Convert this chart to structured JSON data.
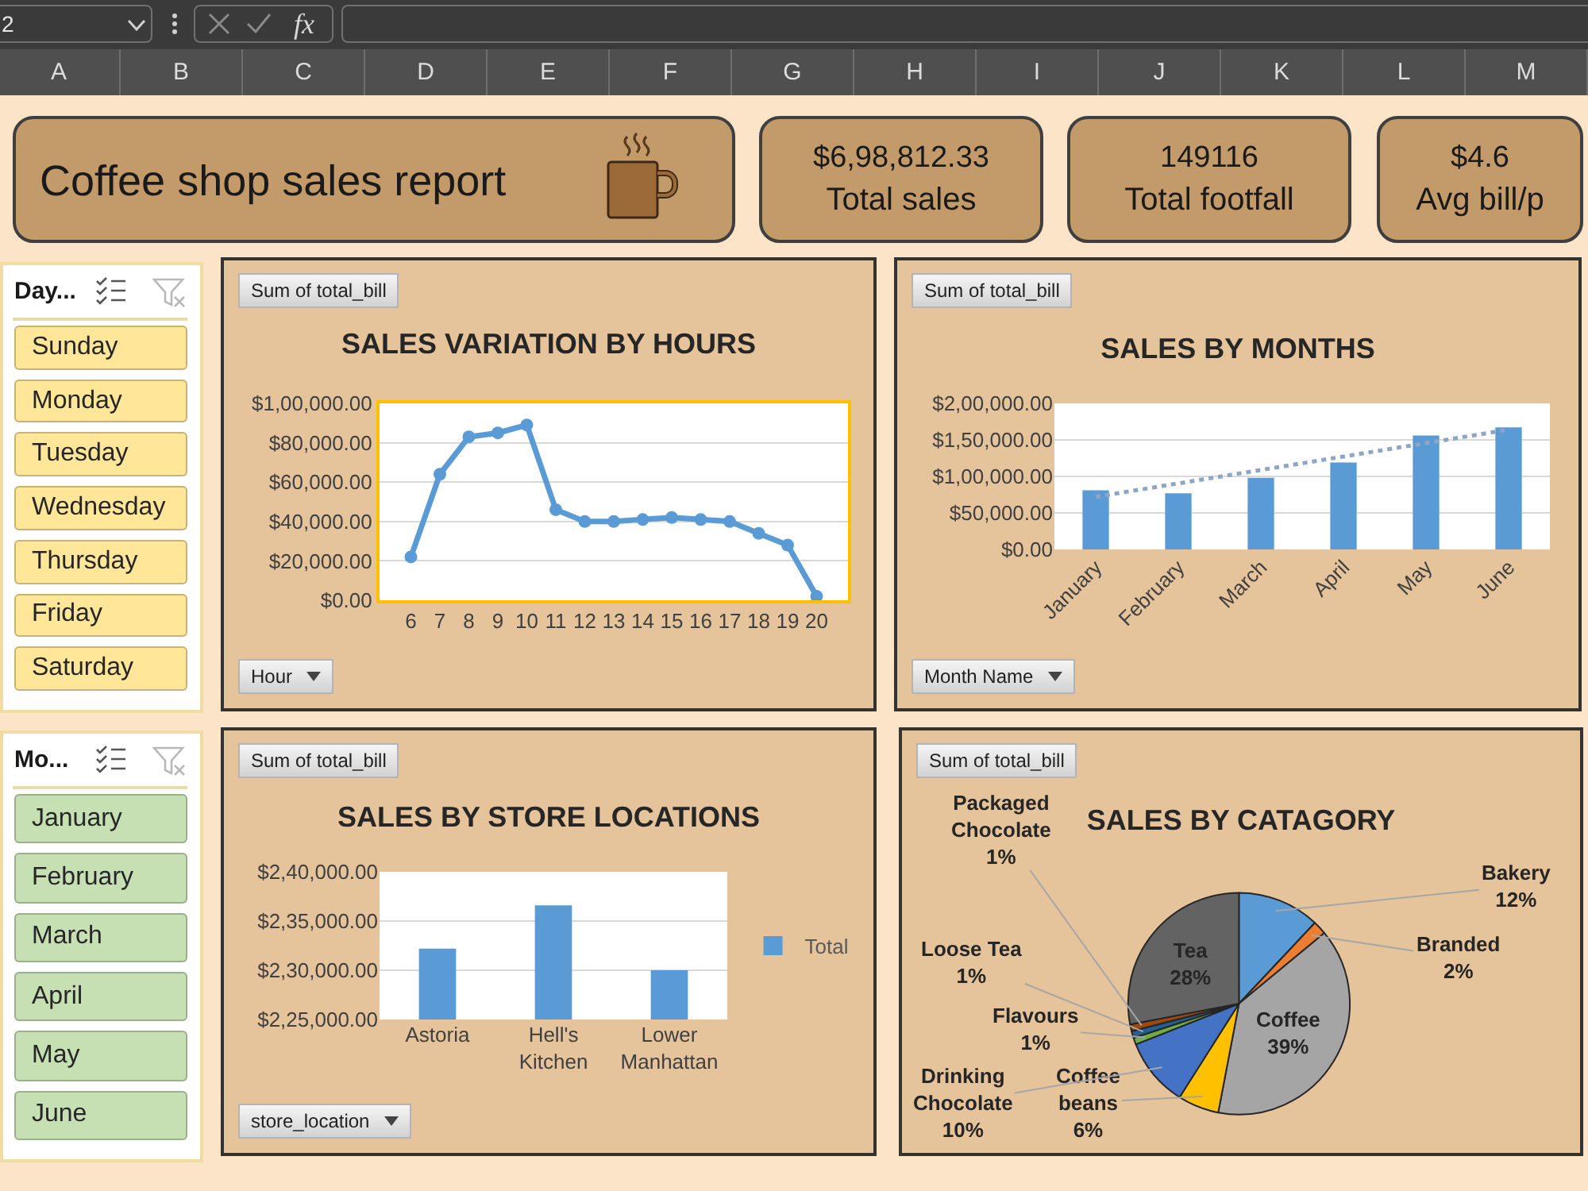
{
  "chart_data": [
    {
      "type": "other",
      "annotations": [
        "2",
        "fx",
        "A",
        "B",
        "C",
        "D",
        "E",
        "F",
        "G",
        "H",
        "I",
        "J",
        "K",
        "L",
        "M"
      ]
    },
    {
      "type": "other",
      "title": "Coffee shop sales report"
    },
    {
      "type": "other",
      "title": "Total sales",
      "annotations": [
        "$6,98,812.33"
      ]
    },
    {
      "type": "other",
      "title": "Total footfall",
      "annotations": [
        "149116"
      ]
    },
    {
      "type": "other",
      "title": "Avg bill/p",
      "annotations": [
        "$4.6"
      ]
    },
    {
      "type": "other",
      "title": "Day...",
      "categories": [
        "Sunday",
        "Monday",
        "Tuesday",
        "Wednesday",
        "Thursday",
        "Friday",
        "Saturday"
      ],
      "color": "#ffe699"
    },
    {
      "type": "line",
      "title": "SALES VARIATION BY HOURS",
      "categories": [
        "6",
        "7",
        "8",
        "9",
        "10",
        "11",
        "12",
        "13",
        "14",
        "15",
        "16",
        "17",
        "18",
        "19",
        "20"
      ],
      "values": [
        22000,
        64000,
        83000,
        85000,
        89000,
        46000,
        40000,
        40000,
        41000,
        42000,
        41000,
        40000,
        34000,
        28000,
        2000
      ],
      "color": "#5b9bd5",
      "marker": "circle",
      "ylim": [
        0,
        100000
      ],
      "yticks": [
        {
          "value": 0,
          "label": "$0.00"
        },
        {
          "value": 20000,
          "label": "$20,000.00"
        },
        {
          "value": 40000,
          "label": "$40,000.00"
        },
        {
          "value": 60000,
          "label": "$60,000.00"
        },
        {
          "value": 80000,
          "label": "$80,000.00"
        },
        {
          "value": 100000,
          "label": "$1,00,000.00"
        }
      ],
      "grid": "y",
      "annotations": [
        "Sum of total_bill",
        "Hour"
      ]
    },
    {
      "type": "bar",
      "title": "SALES BY MONTHS",
      "categories": [
        "January",
        "February",
        "March",
        "April",
        "May",
        "June"
      ],
      "series": [
        {
          "color": "#5b9bd5",
          "values": [
            81000,
            77000,
            98000,
            119000,
            156000,
            167000
          ]
        },
        {
          "type": "line",
          "x": [
            "January",
            "June"
          ],
          "values": [
            72000,
            164000
          ],
          "color": "#8ea6c6",
          "line_style": "dotted"
        }
      ],
      "ylim": [
        0,
        200000
      ],
      "yticks": [
        {
          "value": 0,
          "label": "$0.00"
        },
        {
          "value": 50000,
          "label": "$50,000.00"
        },
        {
          "value": 100000,
          "label": "$1,00,000.00"
        },
        {
          "value": 150000,
          "label": "$1,50,000.00"
        },
        {
          "value": 200000,
          "label": "$2,00,000.00"
        }
      ],
      "grid": "y",
      "annotations": [
        "Sum of total_bill",
        "Month Name"
      ]
    },
    {
      "type": "other",
      "title": "Mo...",
      "categories": [
        "January",
        "February",
        "March",
        "April",
        "May",
        "June"
      ],
      "color": "#c6e0b4"
    },
    {
      "type": "bar",
      "title": "SALES BY STORE LOCATIONS",
      "categories": [
        "Astoria",
        "Hell's Kitchen",
        "Lower Manhattan"
      ],
      "series": [
        {
          "name": "Total",
          "color": "#5b9bd5",
          "values": [
            232200,
            236600,
            230000
          ]
        }
      ],
      "ylim": [
        225000,
        240000
      ],
      "yticks": [
        {
          "value": 225000,
          "label": "$2,25,000.00"
        },
        {
          "value": 230000,
          "label": "$2,30,000.00"
        },
        {
          "value": 235000,
          "label": "$2,35,000.00"
        },
        {
          "value": 240000,
          "label": "$2,40,000.00"
        }
      ],
      "grid": "y",
      "legend": "right",
      "annotations": [
        "Sum of total_bill",
        "store_location"
      ]
    },
    {
      "type": "pie",
      "title": "SALES BY CATAGORY",
      "categories": [
        "Bakery",
        "Branded",
        "Coffee",
        "Coffee beans",
        "Drinking Chocolate",
        "Flavours",
        "Loose Tea",
        "Packaged Chocolate",
        "Tea"
      ],
      "values": [
        12,
        2,
        39,
        6,
        10,
        1,
        1,
        1,
        28
      ],
      "colors": [
        "#5b9bd5",
        "#ed7d31",
        "#a5a5a5",
        "#ffc000",
        "#4472c4",
        "#70ad47",
        "#255e91",
        "#9e480e",
        "#636363"
      ],
      "value_labels": [
        "12%",
        "2%",
        "39%",
        "6%",
        "10%",
        "1%",
        "1%",
        "1%",
        "28%"
      ],
      "annotations": [
        "Sum of total_bill"
      ]
    }
  ]
}
